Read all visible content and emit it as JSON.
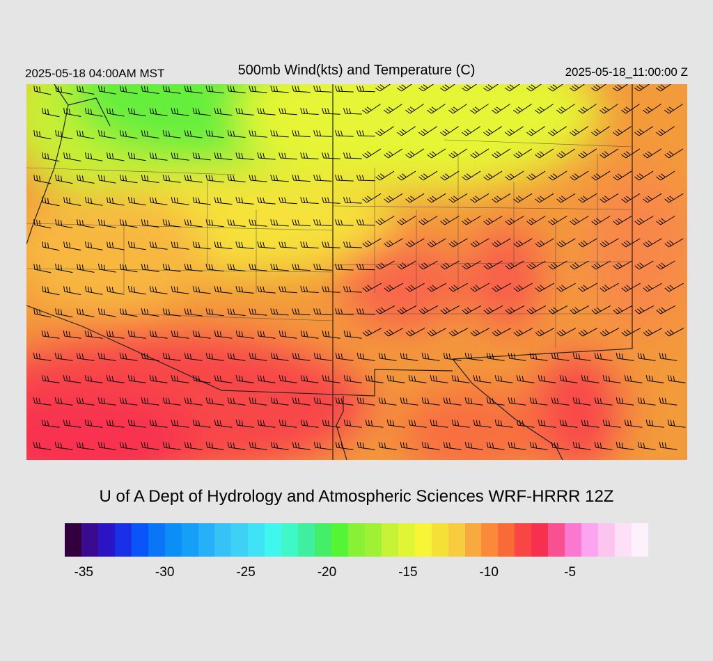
{
  "header": {
    "local_time": "2025-05-18 04:00AM MST",
    "title": "500mb Wind(kts) and Temperature (C)",
    "valid_time": "2025-05-18_11:00:00 Z"
  },
  "credit": "U of A Dept of Hydrology and Atmospheric Sciences WRF-HRRR 12Z",
  "colorbar": {
    "colors": [
      "#33003f",
      "#3a0a8f",
      "#2a14c4",
      "#1a30e8",
      "#0a55f7",
      "#0a75f7",
      "#0b8ff7",
      "#159ff7",
      "#25b0f7",
      "#36c2f7",
      "#3fd0f5",
      "#40e3f5",
      "#40f7f0",
      "#40f7c8",
      "#40eea0",
      "#44ee66",
      "#55f535",
      "#88f035",
      "#a0f035",
      "#c8f235",
      "#e0f535",
      "#f7f535",
      "#f5e038",
      "#f8cc3f",
      "#f8aa40",
      "#fa8a3a",
      "#fa6a38",
      "#fa4545",
      "#f83050",
      "#f85090",
      "#fa78d0",
      "#fba5f0",
      "#fcc5f0",
      "#fde0f8",
      "#fdf2fb"
    ],
    "tick_labels": [
      "-35",
      "-30",
      "-25",
      "-20",
      "-15",
      "-10",
      "-5"
    ],
    "tick_values": [
      -35,
      -30,
      -25,
      -20,
      -15,
      -10,
      -5
    ],
    "min": -36,
    "max": 0
  },
  "map": {
    "field": "500mb temperature",
    "units": "C",
    "wind_units": "kts",
    "region": "Southwestern United States"
  }
}
